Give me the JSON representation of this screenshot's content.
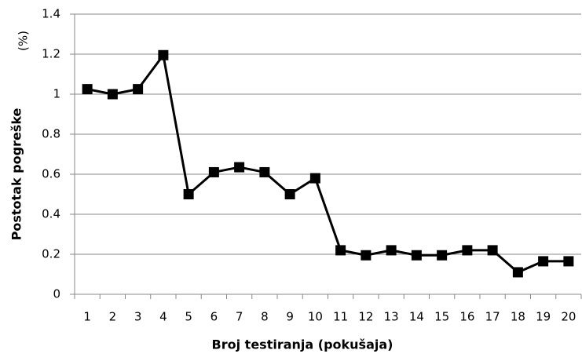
{
  "chart_data": {
    "type": "line",
    "annotation": "(%)",
    "y_label": "Postotak pogreške",
    "x_label": "Broj testiranja (pokušaja)",
    "categories": [
      "1",
      "2",
      "3",
      "4",
      "5",
      "6",
      "7",
      "8",
      "9",
      "10",
      "11",
      "12",
      "13",
      "14",
      "15",
      "16",
      "17",
      "18",
      "19",
      "20"
    ],
    "values": [
      1.025,
      1.0,
      1.025,
      1.195,
      0.5,
      0.61,
      0.635,
      0.61,
      0.5,
      0.58,
      0.22,
      0.195,
      0.22,
      0.195,
      0.195,
      0.22,
      0.22,
      0.11,
      0.165,
      0.165
    ],
    "color": "#000000",
    "ylim": [
      0,
      1.4
    ],
    "yticks": [
      0,
      0.2,
      0.4,
      0.6,
      0.8,
      1,
      1.2,
      1.4
    ],
    "grid": true
  }
}
